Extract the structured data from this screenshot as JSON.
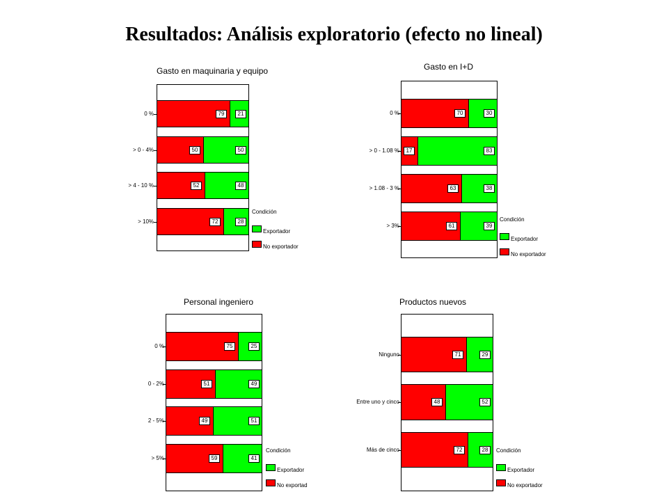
{
  "slide_title": "Resultados: Análisis exploratorio (efecto no lineal)",
  "colors": {
    "exportador": "#00ff00",
    "no_exportador": "#ff0000"
  },
  "chart_data": [
    {
      "type": "bar",
      "stacked": true,
      "orientation": "horizontal",
      "title": "Gasto en maquinaria y equipo",
      "categories": [
        "0 %",
        "> 0 - 4%",
        "> 4 - 10 %",
        "> 10%"
      ],
      "series": [
        {
          "name": "No exportador",
          "values": [
            79,
            50,
            52,
            72
          ]
        },
        {
          "name": "Exportador",
          "values": [
            21,
            50,
            48,
            28
          ]
        }
      ],
      "legend": {
        "title": "Condición",
        "entries": [
          "Exportador",
          "No exportador"
        ]
      }
    },
    {
      "type": "bar",
      "stacked": true,
      "orientation": "horizontal",
      "title": "Gasto en I+D",
      "categories": [
        "0 %",
        "> 0 - 1.08 %",
        "> 1.08 - 3 %",
        "> 3%"
      ],
      "series": [
        {
          "name": "No exportador",
          "values": [
            70,
            17,
            63,
            61
          ]
        },
        {
          "name": "Exportador",
          "values": [
            30,
            83,
            38,
            39
          ]
        }
      ],
      "legend": {
        "title": "Condición",
        "entries": [
          "Exportador",
          "No exportador"
        ]
      }
    },
    {
      "type": "bar",
      "stacked": true,
      "orientation": "horizontal",
      "title": "Personal ingeniero",
      "categories": [
        "0 %",
        "0 - 2%",
        "2 - 5%",
        "> 5%"
      ],
      "series": [
        {
          "name": "No exportador",
          "values": [
            75,
            51,
            49,
            59
          ]
        },
        {
          "name": "Exportador",
          "values": [
            25,
            49,
            51,
            41
          ]
        }
      ],
      "legend": {
        "title": "Condición",
        "entries": [
          "Exportador",
          "No exportad"
        ]
      }
    },
    {
      "type": "bar",
      "stacked": true,
      "orientation": "horizontal",
      "title": "Productos nuevos",
      "categories": [
        "Ninguno",
        "Entre uno y cinco",
        "Más de cinco"
      ],
      "series": [
        {
          "name": "No exportador",
          "values": [
            71,
            48,
            72
          ]
        },
        {
          "name": "Exportador",
          "values": [
            29,
            52,
            28
          ]
        }
      ],
      "legend": {
        "title": "Condición",
        "entries": [
          "Exportador",
          "No exportador"
        ]
      }
    }
  ]
}
